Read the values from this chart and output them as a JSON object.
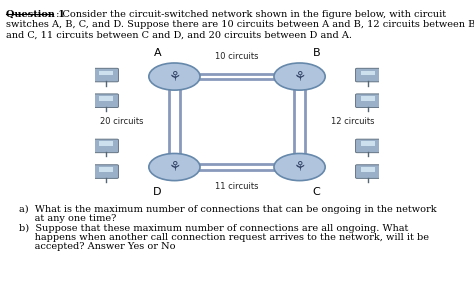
{
  "title_bold": "Question 1",
  "title_colon": " : Consider the circuit-switched network shown in the figure below, with circuit",
  "title_line2": "switches A, B, C, and D. Suppose there are 10 circuits between A and B, 12 circuits between B",
  "title_line3": "and C, 11 circuits between C and D, and 20 circuits between D and A.",
  "question_a_line1": "a)  What is the maximum number of connections that can be ongoing in the network",
  "question_a_line2": "     at any one time?",
  "question_b_line1": "b)  Suppose that these maximum number of connections are all ongoing. What",
  "question_b_line2": "     happens when another call connection request arrives to the network, will it be",
  "question_b_line3": "     accepted? Answer Yes or No",
  "label_AB": "10 circuits",
  "label_BC": "12 circuits",
  "label_CD": "11 circuits",
  "label_DA": "20 circuits",
  "bg_color": "#ffffff",
  "diagram_bg": "#dce8f0",
  "node_fill": "#b0c4de",
  "node_edge": "#6688aa",
  "line_color": "#8899bb",
  "icon_fill": "#9ab0c8",
  "icon_edge": "#556677"
}
